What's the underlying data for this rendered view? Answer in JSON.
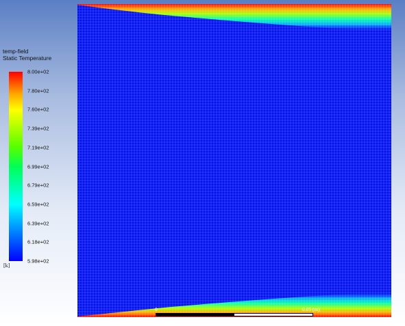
{
  "legend": {
    "title_line1": "temp-field",
    "title_line2": "Static Temperature",
    "unit": "[k]",
    "ticks": [
      "8.00e+02",
      "7.80e+02",
      "7.60e+02",
      "7.39e+02",
      "7.19e+02",
      "6.99e+02",
      "6.79e+02",
      "6.59e+02",
      "6.39e+02",
      "6.18e+02",
      "5.98e+02"
    ]
  },
  "scale": {
    "start_label": "0",
    "end_label": "0.05 (m)"
  },
  "colors": {
    "mesh_base": "#0000ff",
    "hot": "#ff0000"
  }
}
